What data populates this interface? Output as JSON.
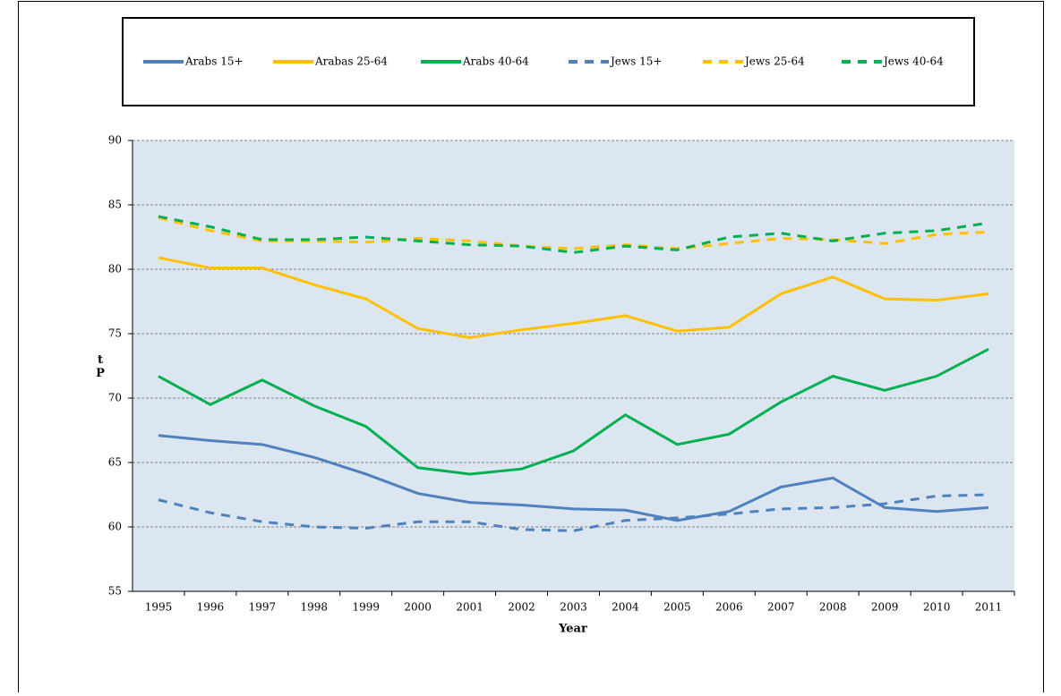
{
  "chart_data": {
    "type": "line",
    "x_label": "Year",
    "y_label": "tP",
    "categories": [
      "1995",
      "1996",
      "1997",
      "1998",
      "1999",
      "2000",
      "2001",
      "2002",
      "2003",
      "2004",
      "2005",
      "2006",
      "2007",
      "2008",
      "2009",
      "2010",
      "2011"
    ],
    "ylim": [
      55,
      90
    ],
    "yticks": [
      55,
      60,
      65,
      70,
      75,
      80,
      85,
      90
    ],
    "grid": true,
    "series": [
      {
        "name": "Arabs 15+",
        "color": "#4f81bd",
        "dashed": false,
        "values": [
          67.1,
          66.7,
          66.4,
          65.4,
          64.1,
          62.6,
          61.9,
          61.7,
          61.4,
          61.3,
          60.5,
          61.2,
          63.1,
          63.8,
          61.5,
          61.2,
          61.5
        ]
      },
      {
        "name": "Arabas 25-64",
        "color": "#ffc000",
        "dashed": false,
        "values": [
          80.9,
          80.1,
          80.1,
          78.8,
          77.7,
          75.4,
          74.7,
          75.3,
          75.8,
          76.4,
          75.2,
          75.5,
          78.1,
          79.4,
          77.7,
          77.6,
          78.1
        ]
      },
      {
        "name": "Arabs 40-64",
        "color": "#00b050",
        "dashed": false,
        "values": [
          71.7,
          69.5,
          71.4,
          69.4,
          67.8,
          64.6,
          64.1,
          64.5,
          65.9,
          68.7,
          66.4,
          67.2,
          69.7,
          71.7,
          70.6,
          71.7,
          73.8
        ]
      },
      {
        "name": "Jews 15+",
        "color": "#4f81bd",
        "dashed": true,
        "values": [
          62.1,
          61.1,
          60.4,
          60.0,
          59.9,
          60.4,
          60.4,
          59.8,
          59.7,
          60.5,
          60.7,
          61.0,
          61.4,
          61.5,
          61.8,
          62.4,
          62.5
        ]
      },
      {
        "name": "Jews 25-64",
        "color": "#ffc000",
        "dashed": true,
        "values": [
          84.0,
          83.0,
          82.2,
          82.2,
          82.1,
          82.4,
          82.2,
          81.8,
          81.6,
          81.9,
          81.6,
          82.0,
          82.4,
          82.3,
          82.0,
          82.7,
          82.9
        ]
      },
      {
        "name": "Jews 40-64",
        "color": "#00b050",
        "dashed": true,
        "values": [
          84.1,
          83.3,
          82.3,
          82.3,
          82.5,
          82.2,
          81.9,
          81.8,
          81.3,
          81.8,
          81.5,
          82.5,
          82.8,
          82.2,
          82.8,
          83.0,
          83.6
        ]
      }
    ]
  }
}
